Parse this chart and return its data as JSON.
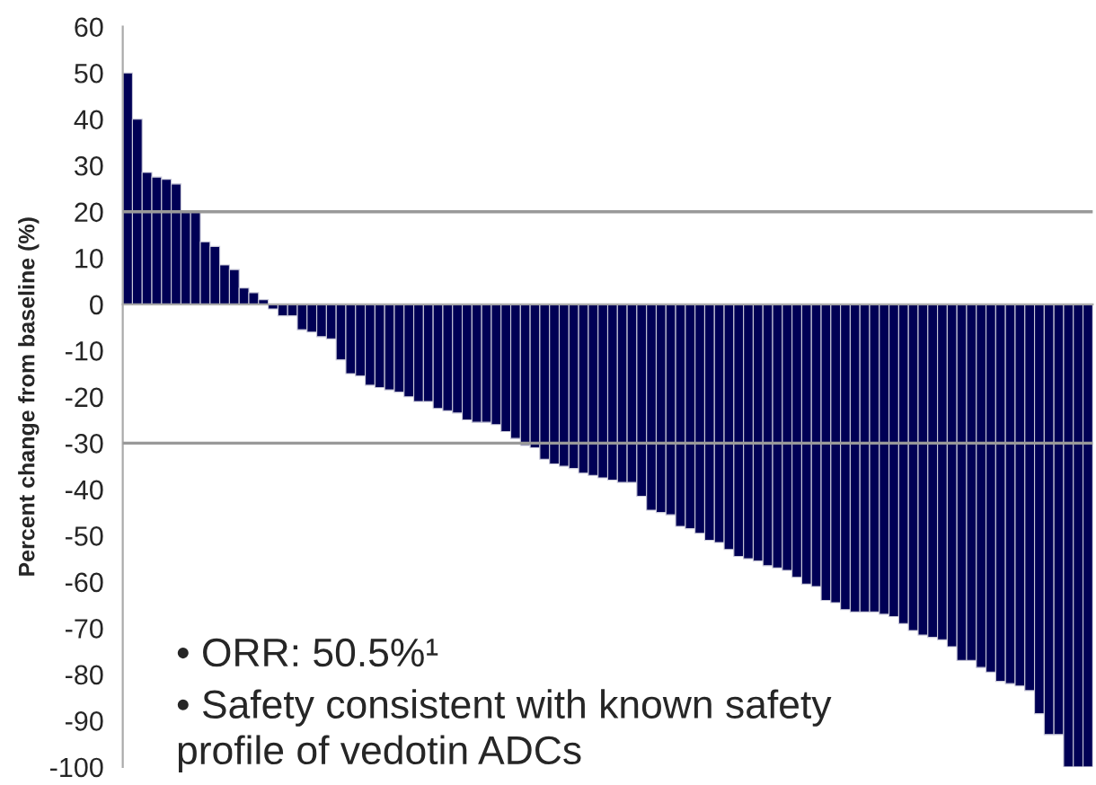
{
  "chart_data": {
    "type": "bar",
    "ylabel": "Percent change from baseline (%)",
    "categories": [
      null,
      null,
      null,
      null,
      null,
      null,
      null,
      null,
      null,
      null,
      null,
      null,
      null,
      null,
      null,
      null,
      null,
      null,
      null,
      null,
      null,
      null,
      null,
      null,
      null,
      null,
      null,
      null,
      null,
      null,
      null,
      null,
      null,
      null,
      null,
      null,
      null,
      null,
      null,
      null,
      null,
      null,
      null,
      null,
      null,
      null,
      null,
      null,
      null,
      null,
      null,
      null,
      null,
      null,
      null,
      null,
      null,
      null,
      null,
      null,
      null,
      null,
      null,
      null,
      null,
      null,
      null,
      null,
      null,
      null,
      null,
      null,
      null,
      null,
      null,
      null,
      null,
      null,
      null,
      null,
      null,
      null,
      null,
      null,
      null,
      null,
      null,
      null,
      null,
      null,
      null,
      null,
      null,
      null,
      null,
      null,
      null,
      null,
      null,
      null
    ],
    "values": [
      50,
      40,
      28.5,
      27.5,
      27,
      26,
      20,
      20,
      13.5,
      12.5,
      8.5,
      7.5,
      3.5,
      2.5,
      1,
      -1,
      -2.5,
      -2.5,
      -5.5,
      -6,
      -7,
      -7.5,
      -12,
      -15,
      -15.5,
      -17.5,
      -18,
      -18.5,
      -19,
      -20,
      -21,
      -21,
      -22.5,
      -23,
      -23.5,
      -25,
      -25.5,
      -25.5,
      -26,
      -27.5,
      -29,
      -30.5,
      -31,
      -33.5,
      -34.5,
      -35,
      -35.5,
      -36.5,
      -37,
      -37.5,
      -38,
      -38.5,
      -38.5,
      -41.5,
      -44.5,
      -45,
      -45.5,
      -48,
      -48.5,
      -49.5,
      -51,
      -51.5,
      -53,
      -54.5,
      -55,
      -55.5,
      -56.5,
      -57,
      -57.5,
      -59,
      -60.5,
      -61,
      -64,
      -64.5,
      -66,
      -66.5,
      -66.5,
      -66.5,
      -67,
      -67.5,
      -69,
      -70.5,
      -71.5,
      -72,
      -72.5,
      -74,
      -77,
      -77,
      -78.5,
      -79.5,
      -81.5,
      -82,
      -82.5,
      -83.5,
      -88.5,
      -93,
      -93,
      -100,
      -100,
      -100
    ],
    "color": "#000055",
    "ylim": [
      -100,
      60
    ],
    "yticks": [
      -100,
      -90,
      -80,
      -70,
      -60,
      -50,
      -40,
      -30,
      -20,
      -10,
      0,
      10,
      20,
      30,
      40,
      50,
      60
    ],
    "ref_lines": [
      {
        "axis": "y",
        "value": 20,
        "color": "#999999"
      },
      {
        "axis": "y",
        "value": -30,
        "color": "#999999"
      }
    ],
    "tick_labels": "y",
    "grid": false,
    "legend": false,
    "annotations": [
      "• ORR: 50.5%¹",
      "• Safety consistent with known safety\nprofile of vedotin ADCs"
    ]
  }
}
